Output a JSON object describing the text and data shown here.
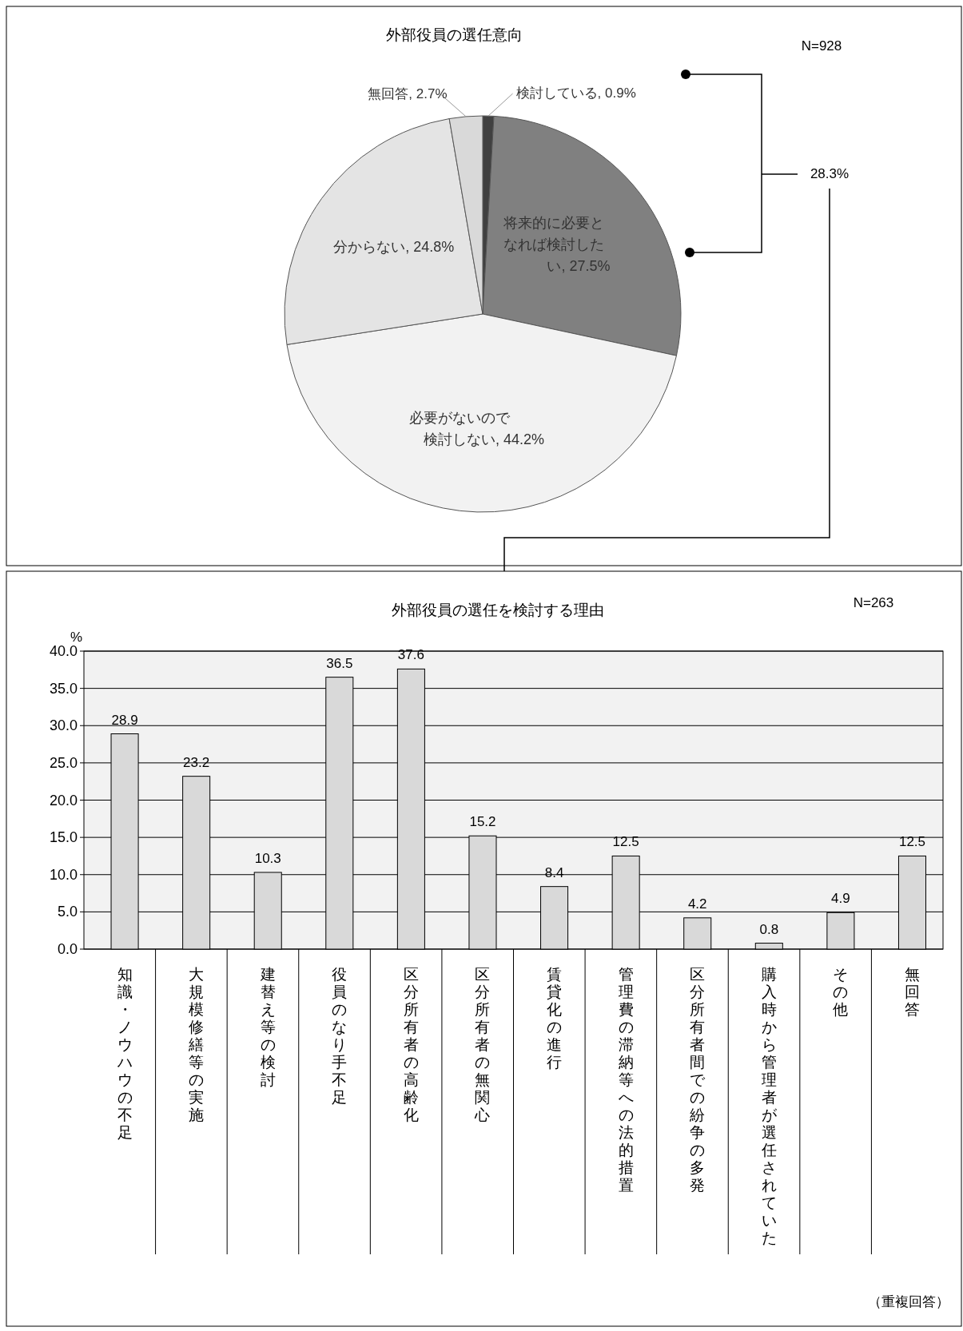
{
  "chart_data": [
    {
      "type": "pie",
      "title": "外部役員の選任意向",
      "categories": [
        "検討している",
        "将来的に必要となれば検討したい",
        "必要がないので検討しない",
        "分からない",
        "無回答"
      ],
      "values": [
        0.9,
        27.5,
        44.2,
        24.8,
        2.7
      ],
      "colors": [
        "#404040",
        "#808080",
        "#f2f2f2",
        "#e4e4e4",
        "#d9d9d9"
      ],
      "value_labels": [
        ", 0.9%",
        ", 27.5%",
        ", 44.2%",
        ", 24.8%",
        ", 2.7%"
      ],
      "annotations": [
        "N=928",
        "28.3%"
      ]
    },
    {
      "type": "bar",
      "title": "外部役員の選任を検討する理由",
      "ylabel": "%",
      "categories": [
        "知識・ノウハウの不足",
        "大規模修繕等の実施",
        "建替え等の検討",
        "役員のなり手不足",
        "区分所有者の高齢化",
        "区分所有者の無関心",
        "賃貸化の進行",
        "管理費の滞納等への法的措置",
        "区分所有者間での紛争の多発",
        "購入時から管理者が選任されていた",
        "その他",
        "無回答"
      ],
      "values": [
        28.9,
        23.2,
        10.3,
        36.5,
        37.6,
        15.2,
        8.4,
        12.5,
        4.2,
        0.8,
        4.9,
        12.5
      ],
      "color": "#d9d9d9",
      "ylim": [
        0,
        40
      ],
      "yticks": [
        {
          "value": 0,
          "label": "0.0"
        },
        {
          "value": 5,
          "label": "5.0"
        },
        {
          "value": 10,
          "label": "10.0"
        },
        {
          "value": 15,
          "label": "15.0"
        },
        {
          "value": 20,
          "label": "20.0"
        },
        {
          "value": 25,
          "label": "25.0"
        },
        {
          "value": 30,
          "label": "30.0"
        },
        {
          "value": 35,
          "label": "35.0"
        },
        {
          "value": 40,
          "label": "40.0"
        }
      ],
      "grid": "y",
      "data_labels": true,
      "annotations": [
        "N=263",
        "（重複回答）"
      ]
    }
  ]
}
